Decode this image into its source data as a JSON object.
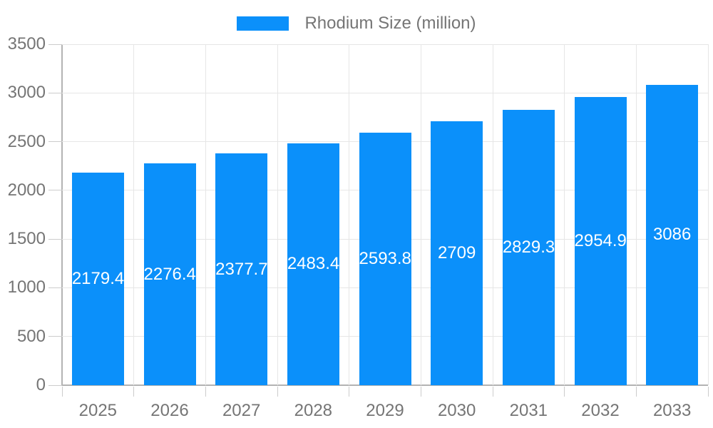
{
  "legend": {
    "label": "Rhodium Size (million)"
  },
  "chart_data": {
    "type": "bar",
    "title": "",
    "categories": [
      "2025",
      "2026",
      "2027",
      "2028",
      "2029",
      "2030",
      "2031",
      "2032",
      "2033"
    ],
    "series": [
      {
        "name": "Rhodium Size (million)",
        "values": [
          2179.4,
          2276.4,
          2377.7,
          2483.4,
          2593.8,
          2709,
          2829.3,
          2954.9,
          3086
        ]
      }
    ],
    "value_labels": [
      "2179.4",
      "2276.4",
      "2377.7",
      "2483.4",
      "2593.8",
      "2709",
      "2829.3",
      "2954.9",
      "3086"
    ],
    "xlabel": "",
    "ylabel": "",
    "ylim": [
      0,
      3500
    ],
    "y_ticks": [
      0,
      500,
      1000,
      1500,
      2000,
      2500,
      3000,
      3500
    ],
    "grid": true,
    "legend_position": "top",
    "bar_label_position": "center",
    "colors": {
      "bar": "#0b90fa",
      "bar_value_text": "#ffffff",
      "axis_label": "#757575",
      "grid": "#e6e6e6",
      "axis_line": "#b3b3b3",
      "tick": "#cccccc",
      "background": "#ffffff"
    }
  }
}
